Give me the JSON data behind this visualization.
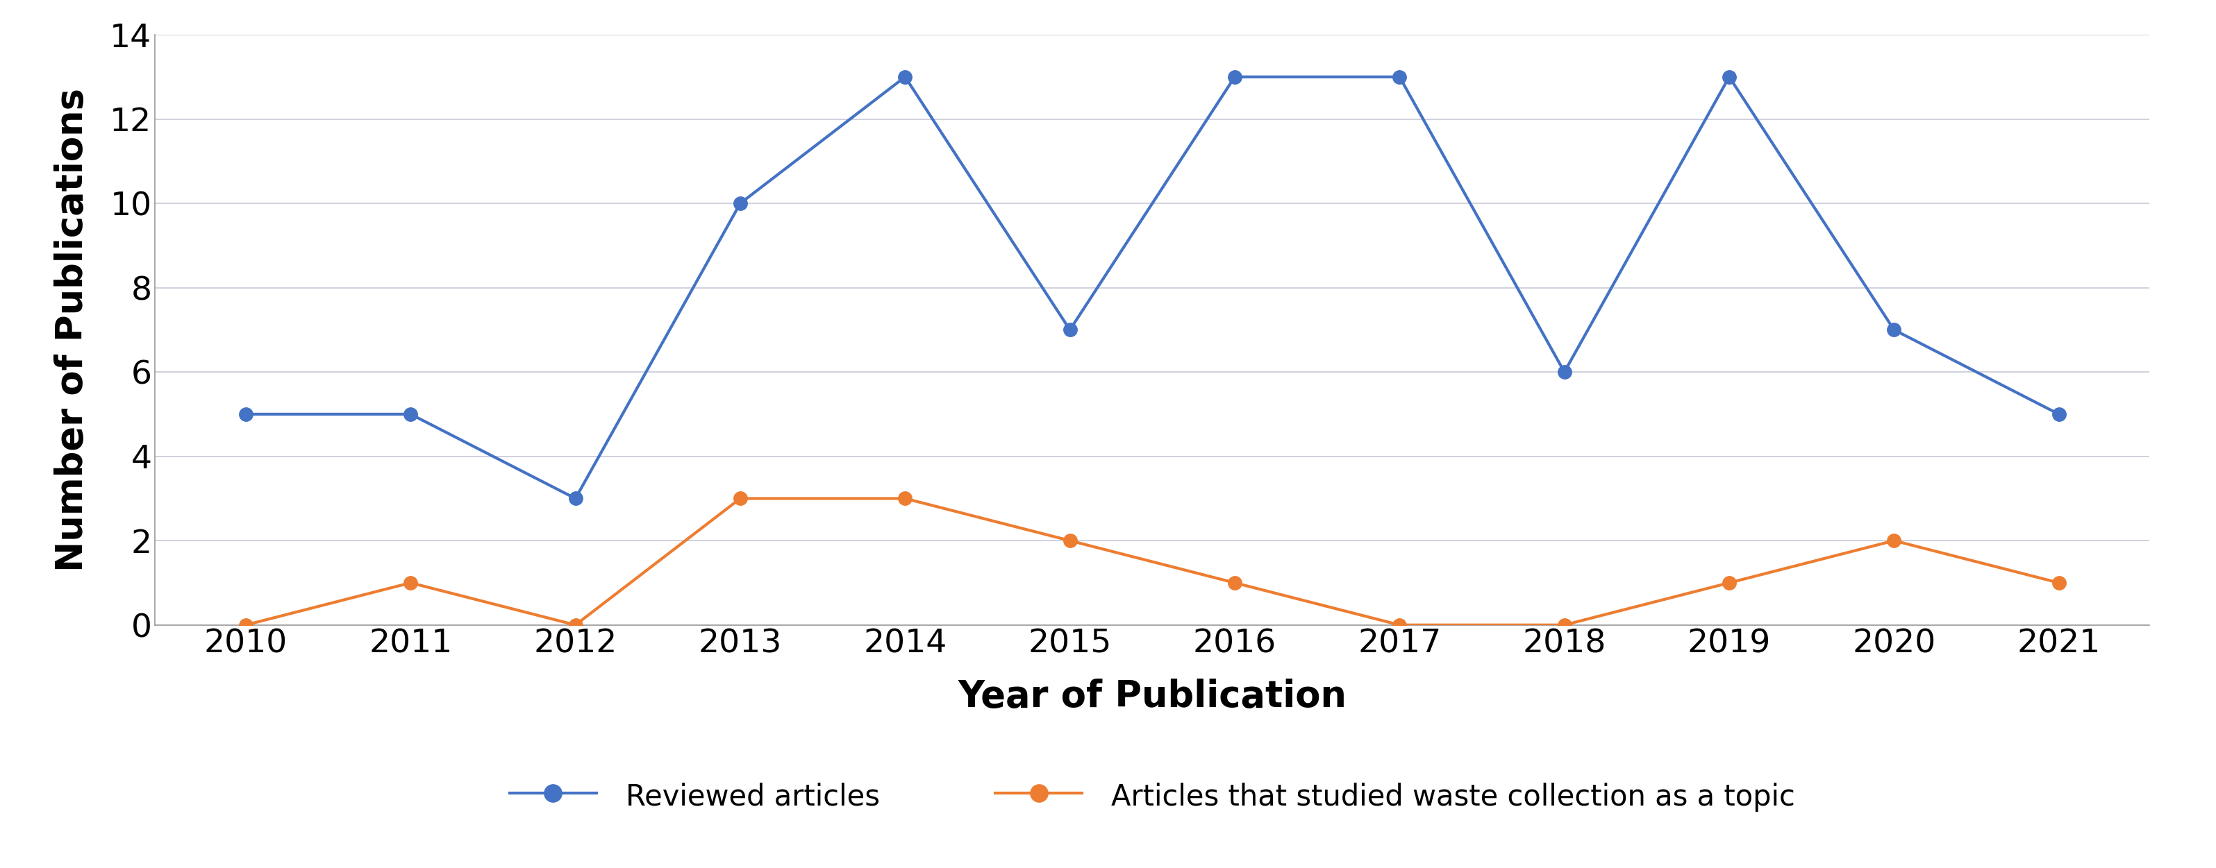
{
  "years": [
    2010,
    2011,
    2012,
    2013,
    2014,
    2015,
    2016,
    2017,
    2018,
    2019,
    2020,
    2021
  ],
  "reviewed_articles": [
    5,
    5,
    3,
    10,
    13,
    7,
    13,
    13,
    6,
    13,
    7,
    5
  ],
  "waste_collection_articles": [
    0,
    1,
    0,
    3,
    3,
    2,
    1,
    0,
    0,
    1,
    2,
    1
  ],
  "blue_color": "#4472C4",
  "orange_color": "#ED7D31",
  "xlabel": "Year of Publication",
  "ylabel": "Number of Publications",
  "ylim": [
    0,
    14
  ],
  "yticks": [
    0,
    2,
    4,
    6,
    8,
    10,
    12,
    14
  ],
  "legend_label_blue": "Reviewed articles",
  "legend_label_orange": "Articles that studied waste collection as a topic",
  "marker_size": 14,
  "linewidth": 3.0,
  "xlabel_fontsize": 38,
  "ylabel_fontsize": 38,
  "tick_fontsize": 34,
  "legend_fontsize": 30,
  "background_color": "#ffffff",
  "grid_color": "#c8c8d8",
  "spine_color": "#999999"
}
